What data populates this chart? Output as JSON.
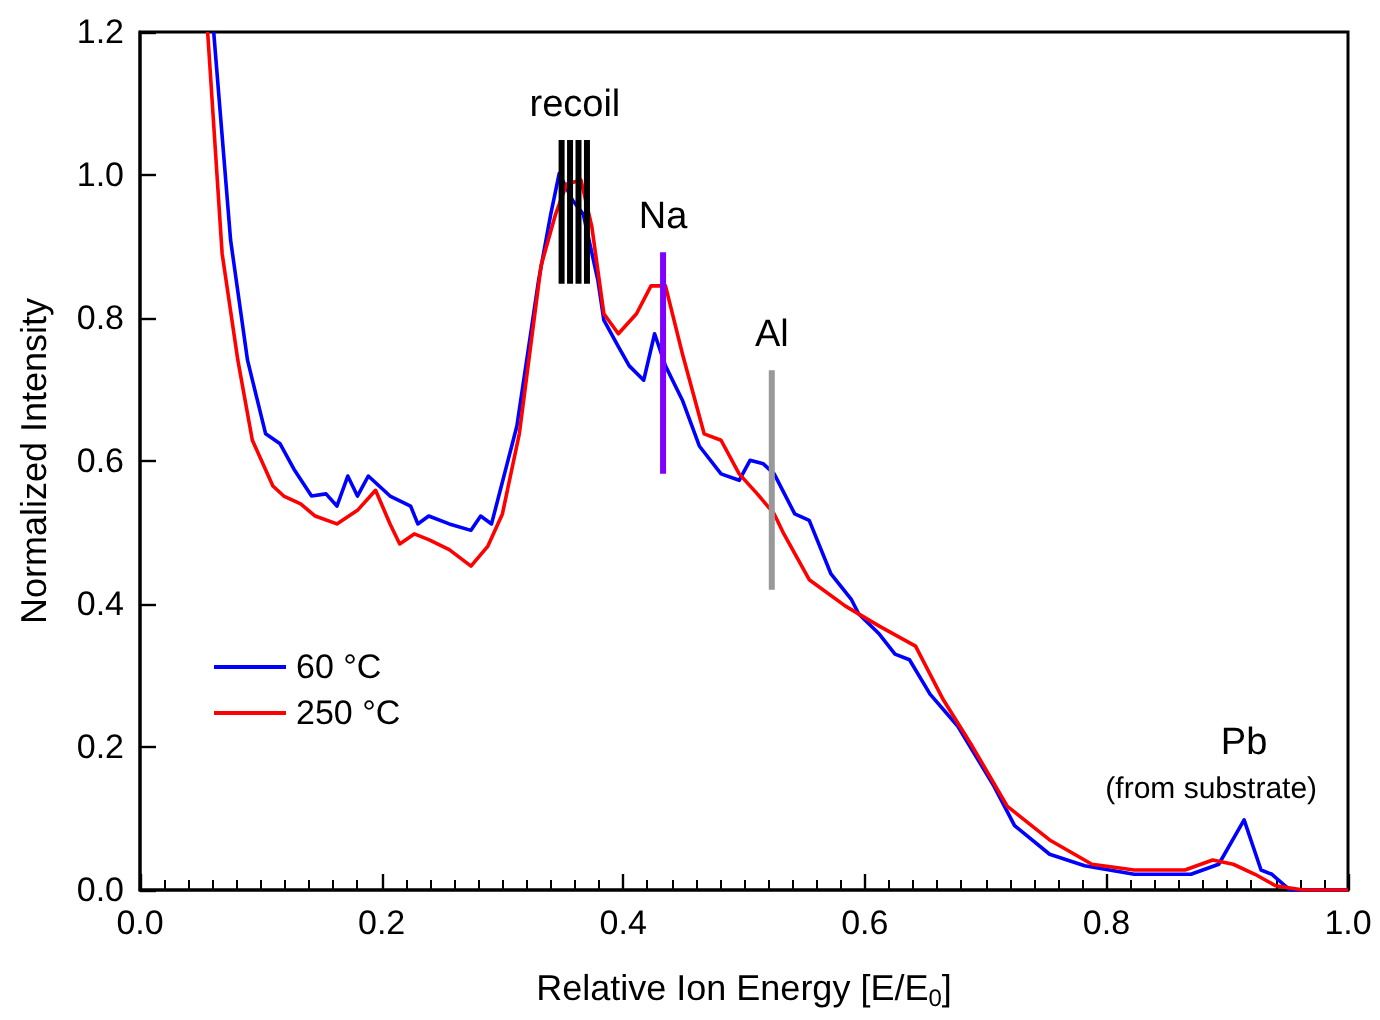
{
  "chart_data": {
    "type": "line",
    "xlabel": "Relative Ion Energy [E/E$_{0}$]",
    "ylabel": "Normalized Intensity",
    "xlim": [
      0,
      1
    ],
    "ylim": [
      0,
      1.2
    ],
    "xticks": [
      {
        "value": 0,
        "label": "0.0"
      },
      0.2,
      0.4,
      0.6,
      0.8,
      {
        "value": 1,
        "label": "1.0"
      }
    ],
    "yticks": [
      {
        "value": 0,
        "label": "0.0"
      },
      0.2,
      0.4,
      0.6,
      0.8,
      {
        "value": 1,
        "label": "1.0"
      },
      1.2
    ],
    "grid": false,
    "legend": "bottom left",
    "marker": "none",
    "line_style": "solid",
    "annotations": [
      {
        "text": "recoil",
        "x": 0.36,
        "y": 1.049
      },
      {
        "text": "Na",
        "x": 0.433,
        "y": 0.892
      },
      {
        "text": "Al",
        "x": 0.523,
        "y": 0.727
      },
      {
        "text": "(from substrate)",
        "x": 0.914,
        "y": 0.098
      },
      {
        "text": "Pb",
        "x": 0.914,
        "y": 0.098
      }
    ],
    "series": [
      {
        "name": "60 °C",
        "color": "#0000ff",
        "x": [
          0.061,
          0.075,
          0.089,
          0.104,
          0.116,
          0.128,
          0.142,
          0.154,
          0.163,
          0.172,
          0.18,
          0.189,
          0.207,
          0.224,
          0.23,
          0.239,
          0.256,
          0.274,
          0.282,
          0.291,
          0.297,
          0.312,
          0.33,
          0.34,
          0.347,
          0.358,
          0.367,
          0.379,
          0.384,
          0.396,
          0.405,
          0.417,
          0.426,
          0.435,
          0.449,
          0.463,
          0.481,
          0.496,
          0.505,
          0.516,
          0.525,
          0.542,
          0.554,
          0.572,
          0.589,
          0.595,
          0.612,
          0.625,
          0.637,
          0.654,
          0.677,
          0.707,
          0.724,
          0.753,
          0.782,
          0.823,
          0.87,
          0.893,
          0.914,
          0.928,
          0.937,
          0.952,
          1.0
        ],
        "values": [
          1.2,
          0.909,
          0.741,
          0.638,
          0.624,
          0.587,
          0.551,
          0.554,
          0.537,
          0.579,
          0.551,
          0.579,
          0.551,
          0.537,
          0.512,
          0.523,
          0.512,
          0.503,
          0.523,
          0.512,
          0.551,
          0.649,
          0.853,
          0.945,
          1.002,
          0.965,
          0.945,
          0.853,
          0.797,
          0.76,
          0.733,
          0.713,
          0.778,
          0.733,
          0.685,
          0.621,
          0.582,
          0.573,
          0.601,
          0.596,
          0.582,
          0.526,
          0.517,
          0.442,
          0.406,
          0.386,
          0.358,
          0.33,
          0.322,
          0.274,
          0.229,
          0.145,
          0.09,
          0.05,
          0.034,
          0.022,
          0.022,
          0.036,
          0.098,
          0.028,
          0.022,
          0,
          0
        ]
      },
      {
        "name": "250 °C",
        "color": "#ff0000",
        "x": [
          0.056,
          0.068,
          0.081,
          0.093,
          0.11,
          0.119,
          0.133,
          0.145,
          0.163,
          0.18,
          0.195,
          0.207,
          0.215,
          0.227,
          0.239,
          0.256,
          0.274,
          0.288,
          0.3,
          0.314,
          0.332,
          0.344,
          0.353,
          0.365,
          0.374,
          0.384,
          0.396,
          0.411,
          0.423,
          0.435,
          0.449,
          0.467,
          0.481,
          0.496,
          0.511,
          0.525,
          0.533,
          0.554,
          0.584,
          0.612,
          0.642,
          0.665,
          0.689,
          0.718,
          0.753,
          0.788,
          0.823,
          0.865,
          0.888,
          0.905,
          0.923,
          0.94,
          0.963,
          1.0
        ],
        "values": [
          1.2,
          0.89,
          0.741,
          0.629,
          0.565,
          0.551,
          0.54,
          0.523,
          0.512,
          0.531,
          0.559,
          0.512,
          0.484,
          0.498,
          0.49,
          0.476,
          0.453,
          0.481,
          0.526,
          0.638,
          0.873,
          0.945,
          0.987,
          0.993,
          0.928,
          0.806,
          0.778,
          0.806,
          0.845,
          0.845,
          0.75,
          0.638,
          0.629,
          0.582,
          0.554,
          0.526,
          0.498,
          0.434,
          0.397,
          0.369,
          0.341,
          0.266,
          0.201,
          0.117,
          0.07,
          0.036,
          0.028,
          0.028,
          0.042,
          0.036,
          0.022,
          0.006,
          0,
          0
        ]
      },
      {
        "color": "#000000",
        "x": [
          0.349,
          0.349
        ],
        "values": [
          0.848,
          1.049
        ]
      },
      {
        "color": "#000000",
        "x": [
          0.356,
          0.356
        ],
        "values": [
          0.848,
          1.049
        ]
      },
      {
        "color": "#000000",
        "x": [
          0.363,
          0.363
        ],
        "values": [
          0.848,
          1.049
        ]
      },
      {
        "color": "#000000",
        "x": [
          0.37,
          0.37
        ],
        "values": [
          0.848,
          1.049
        ]
      },
      {
        "color": "#7f00ff",
        "x": [
          0.433,
          0.433
        ],
        "values": [
          0.582,
          0.892
        ]
      },
      {
        "color": "#999999",
        "x": [
          0.523,
          0.523
        ],
        "values": [
          0.42,
          0.727
        ]
      }
    ]
  }
}
